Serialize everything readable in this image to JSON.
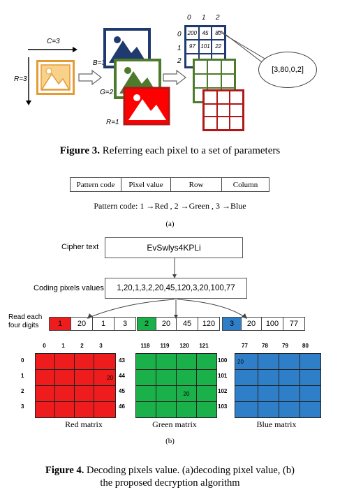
{
  "fig3": {
    "c_label": "C=3",
    "r_label": "R=3",
    "b_label": "B=3",
    "g_label": "G=2",
    "rr_label": "R=1",
    "col_idx": [
      "0",
      "1",
      "2"
    ],
    "row_idx": [
      "0",
      "1",
      "2"
    ],
    "row0": [
      "200",
      "45",
      "80"
    ],
    "row1": [
      "97",
      "101",
      "22"
    ],
    "bubble": "[3,80,0,2]",
    "caption_bold": "Figure 3.",
    "caption_rest": " Referring each pixel to a set of parameters"
  },
  "fig4a": {
    "headers": [
      "Pattern code",
      "Pixel value",
      "Row",
      "Column"
    ],
    "legend": "Pattern code:  1 →Red  ,  2 →Green ,  3 →Blue",
    "label": "(a)"
  },
  "fig4b": {
    "cipher_label": "Cipher text",
    "cipher_value": "EvSwlys4KPLi",
    "coding_label": "Coding pixels values",
    "coding_value": "1,20,1,3,2,20,45,120,3,20,100,77",
    "read_label": "Read each\nfour digits",
    "groups": [
      {
        "cells": [
          "1",
          "20",
          "1",
          "3"
        ]
      },
      {
        "cells": [
          "2",
          "20",
          "45",
          "120"
        ]
      },
      {
        "cells": [
          "3",
          "20",
          "100",
          "77"
        ]
      }
    ],
    "red": {
      "cols": [
        "0",
        "1",
        "2",
        "3"
      ],
      "rows": [
        "0",
        "1",
        "2",
        "3"
      ],
      "mark_row": 1,
      "mark_col": 3,
      "mark": "20",
      "caption": "Red matrix"
    },
    "green": {
      "cols": [
        "118",
        "119",
        "120",
        "121"
      ],
      "rows": [
        "43",
        "44",
        "45",
        "46"
      ],
      "mark_row": 2,
      "mark_col": 2,
      "mark": "20",
      "caption": "Green matrix"
    },
    "blue": {
      "cols": [
        "77",
        "78",
        "79",
        "80"
      ],
      "rows": [
        "100",
        "101",
        "102",
        "103"
      ],
      "mark_row": 0,
      "mark_col": 0,
      "mark": "20",
      "caption": "Blue matrix"
    },
    "label": "(b)"
  },
  "fig4_caption": {
    "bold": "Figure 4.",
    "line1": " Decoding pixels value. (a)decoding pixel value, (b)",
    "line2": "the proposed decryption algorithm"
  },
  "colors": {
    "red": "#ee1c1c",
    "green": "#1ab04a",
    "blue": "#2f7fc8",
    "navy": "#1f3a6e",
    "olive": "#4e7a2c",
    "darkred": "#b01818",
    "orange": "#e69a33"
  }
}
